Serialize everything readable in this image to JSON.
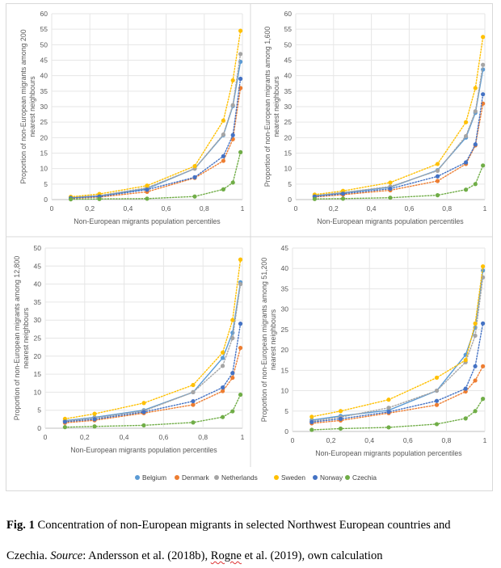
{
  "legend": {
    "items": [
      {
        "name": "Belgium",
        "color": "#5b9bd5"
      },
      {
        "name": "Denmark",
        "color": "#ed7d31"
      },
      {
        "name": "Netherlands",
        "color": "#a5a5a5"
      },
      {
        "name": "Sweden",
        "color": "#ffc000"
      },
      {
        "name": "Norway",
        "color": "#4472c4"
      },
      {
        "name": "Czechia",
        "color": "#70ad47"
      }
    ]
  },
  "caption": {
    "fig_label": "Fig. 1",
    "line1_text": " Concentration of non-European migrants in selected Northwest European countries and",
    "line2_prefix": "Czechia. ",
    "source_label": "Source",
    "line2_mid": ": Andersson et al. (2018b), ",
    "rogne": "Rogne",
    "line2_end": " et al. (2019), own calculation"
  },
  "chart_data": [
    {
      "type": "line",
      "xlabel": "Non-European migrants population percentiles",
      "ylabel": "Proportion of non-European migrants among 200 nearest neighbours",
      "xlim": [
        0,
        1
      ],
      "ylim": [
        0,
        60
      ],
      "xticks": [
        "0",
        "0,2",
        "0,4",
        "0,6",
        "0,8",
        "1"
      ],
      "yticks": [
        "0",
        "5",
        "10",
        "15",
        "20",
        "25",
        "30",
        "35",
        "40",
        "45",
        "50",
        "55",
        "60"
      ],
      "x": [
        0.1,
        0.25,
        0.5,
        0.75,
        0.9,
        0.95,
        0.99
      ],
      "series": [
        {
          "name": "Belgium",
          "values": [
            0.6,
            1.2,
            3.5,
            10.0,
            20.8,
            30.2,
            44.5
          ]
        },
        {
          "name": "Denmark",
          "values": [
            0.4,
            0.8,
            2.5,
            7.0,
            12.5,
            19.5,
            36.0
          ]
        },
        {
          "name": "Netherlands",
          "values": [
            0.7,
            1.3,
            3.8,
            10.0,
            21.0,
            30.5,
            47.0
          ]
        },
        {
          "name": "Sweden",
          "values": [
            0.9,
            1.8,
            4.5,
            10.8,
            25.5,
            38.5,
            54.5
          ]
        },
        {
          "name": "Norway",
          "values": [
            0.5,
            1.0,
            3.2,
            7.2,
            14.0,
            20.8,
            39.0
          ]
        },
        {
          "name": "Czechia",
          "values": [
            0.1,
            0.2,
            0.3,
            1.0,
            3.3,
            5.5,
            15.3
          ]
        }
      ]
    },
    {
      "type": "line",
      "xlabel": "Non-European migrants population percentiles",
      "ylabel": "Proportion of non-European migrants among 1,600 nearest neighbours",
      "xlim": [
        0,
        1
      ],
      "ylim": [
        0,
        60
      ],
      "xticks": [
        "0",
        "0,2",
        "0,4",
        "0,6",
        "0,8",
        "1"
      ],
      "yticks": [
        "0",
        "5",
        "10",
        "15",
        "20",
        "25",
        "30",
        "35",
        "40",
        "45",
        "50",
        "55",
        "60"
      ],
      "x": [
        0.1,
        0.25,
        0.5,
        0.75,
        0.9,
        0.95,
        0.99
      ],
      "series": [
        {
          "name": "Belgium",
          "values": [
            1.2,
            2.2,
            4.0,
            9.5,
            20.0,
            28.0,
            42.0
          ]
        },
        {
          "name": "Denmark",
          "values": [
            0.8,
            1.6,
            3.0,
            6.0,
            11.5,
            17.5,
            31.0
          ]
        },
        {
          "name": "Netherlands",
          "values": [
            1.3,
            2.3,
            4.2,
            9.3,
            20.5,
            28.5,
            43.5
          ]
        },
        {
          "name": "Sweden",
          "values": [
            1.6,
            2.8,
            5.5,
            11.5,
            25.0,
            36.0,
            52.5
          ]
        },
        {
          "name": "Norway",
          "values": [
            1.0,
            1.9,
            3.5,
            7.5,
            12.0,
            17.8,
            34.0
          ]
        },
        {
          "name": "Czechia",
          "values": [
            0.2,
            0.3,
            0.6,
            1.4,
            3.2,
            5.0,
            11.0
          ]
        }
      ]
    },
    {
      "type": "line",
      "xlabel": "Non-European migrants population percentiles",
      "ylabel": "Proportion of non-European migrants among 12,800 nearest neighbours",
      "xlim": [
        0,
        1
      ],
      "ylim": [
        0,
        50
      ],
      "xticks": [
        "0",
        "0,2",
        "0,4",
        "0,6",
        "0,8",
        "1"
      ],
      "yticks": [
        "0",
        "5",
        "10",
        "15",
        "20",
        "25",
        "30",
        "35",
        "40",
        "45",
        "50"
      ],
      "x": [
        0.1,
        0.25,
        0.5,
        0.75,
        0.9,
        0.95,
        0.99
      ],
      "series": [
        {
          "name": "Belgium",
          "values": [
            2.1,
            3.0,
            5.0,
            10.0,
            19.5,
            26.5,
            40.5
          ]
        },
        {
          "name": "Denmark",
          "values": [
            1.5,
            2.2,
            4.2,
            6.5,
            10.3,
            14.0,
            22.3
          ]
        },
        {
          "name": "Netherlands",
          "values": [
            2.0,
            2.8,
            4.8,
            10.0,
            17.3,
            25.0,
            40.0
          ]
        },
        {
          "name": "Sweden",
          "values": [
            2.6,
            4.0,
            7.0,
            12.0,
            21.0,
            30.0,
            46.8
          ]
        },
        {
          "name": "Norway",
          "values": [
            1.8,
            2.5,
            4.5,
            7.5,
            11.3,
            15.3,
            29.0
          ]
        },
        {
          "name": "Czechia",
          "values": [
            0.3,
            0.5,
            0.8,
            1.6,
            3.1,
            4.7,
            9.3
          ]
        }
      ]
    },
    {
      "type": "line",
      "xlabel": "Non-European migrants population percentiles",
      "ylabel": "Proportion of non-European migrants among 51,200 nearest neighbours",
      "xlim": [
        0,
        1
      ],
      "ylim": [
        0,
        45
      ],
      "xticks": [
        "0",
        "0,2",
        "0,4",
        "0,6",
        "0,8",
        "1"
      ],
      "yticks": [
        "0",
        "5",
        "10",
        "15",
        "20",
        "25",
        "30",
        "35",
        "40",
        "45"
      ],
      "x": [
        0.1,
        0.25,
        0.5,
        0.75,
        0.9,
        0.95,
        0.99
      ],
      "series": [
        {
          "name": "Belgium",
          "values": [
            2.8,
            3.8,
            5.2,
            10.0,
            18.8,
            25.5,
            39.5
          ]
        },
        {
          "name": "Denmark",
          "values": [
            2.0,
            2.7,
            4.5,
            6.5,
            9.8,
            12.5,
            16.0
          ]
        },
        {
          "name": "Netherlands",
          "values": [
            2.5,
            3.5,
            5.8,
            10.0,
            17.0,
            23.5,
            37.8
          ]
        },
        {
          "name": "Sweden",
          "values": [
            3.6,
            5.0,
            7.8,
            13.2,
            17.5,
            26.5,
            40.5
          ]
        },
        {
          "name": "Norway",
          "values": [
            2.3,
            3.1,
            4.8,
            7.5,
            10.5,
            16.0,
            26.5
          ]
        },
        {
          "name": "Czechia",
          "values": [
            0.4,
            0.7,
            1.0,
            1.8,
            3.2,
            5.0,
            8.0
          ]
        }
      ]
    }
  ]
}
